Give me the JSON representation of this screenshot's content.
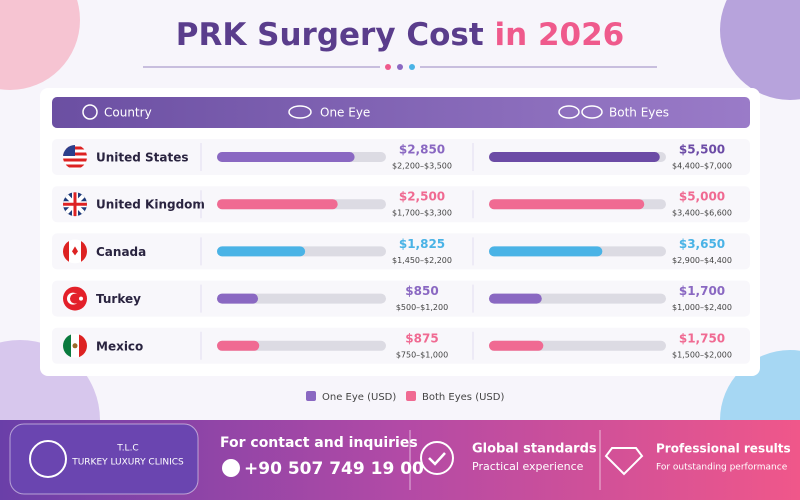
{
  "chart_data": {
    "type": "bar",
    "title": "PRK Surgery Cost",
    "title_highlight": "in 2026",
    "column_headers": [
      "Country",
      "One Eye",
      "Both Eyes"
    ],
    "categories": [
      "United States",
      "United Kingdom",
      "Canada",
      "Turkey",
      "Mexico"
    ],
    "series": [
      {
        "name": "One Eye (USD)",
        "color": "#8a68c2",
        "colors": [
          "#8a68c2",
          "#f06a92",
          "#4ab3e6",
          "#8a68c2",
          "#f06a92"
        ],
        "xlim": [
          0,
          3500
        ],
        "values": [
          2850,
          2500,
          1825,
          850,
          875
        ],
        "value_labels": [
          "$2,850",
          "$2,500",
          "$1,825",
          "$850",
          "$875"
        ],
        "range_labels": [
          "$2,200–$3,500",
          "$1,700–$3,300",
          "$1,450–$2,200",
          "$500–$1,200",
          "$750–$1,000"
        ]
      },
      {
        "name": "Both Eyes (USD)",
        "color": "#f06a92",
        "colors": [
          "#6c4ba6",
          "#f06a92",
          "#4ab3e6",
          "#8a68c2",
          "#f06a92"
        ],
        "xlim": [
          0,
          5700
        ],
        "values": [
          5500,
          5000,
          3650,
          1700,
          1750
        ],
        "value_labels": [
          "$5,500",
          "$5,000",
          "$3,650",
          "$1,700",
          "$1,750"
        ],
        "range_labels": [
          "$4,400–$7,000",
          "$3,400–$6,600",
          "$2,900–$4,400",
          "$1,000–$2,400",
          "$1,500–$2,000"
        ]
      }
    ]
  },
  "footer": {
    "logo_short": "T.L.C",
    "logo_name": "TURKEY LUXURY CLINICS",
    "contact_title": "For contact and inquiries",
    "phone": "+90 507 749 19 00",
    "feature1_title": "Global standards",
    "feature1_text": "Practical experience",
    "feature2_title": "Professional results",
    "feature2_text": "For outstanding performance"
  }
}
